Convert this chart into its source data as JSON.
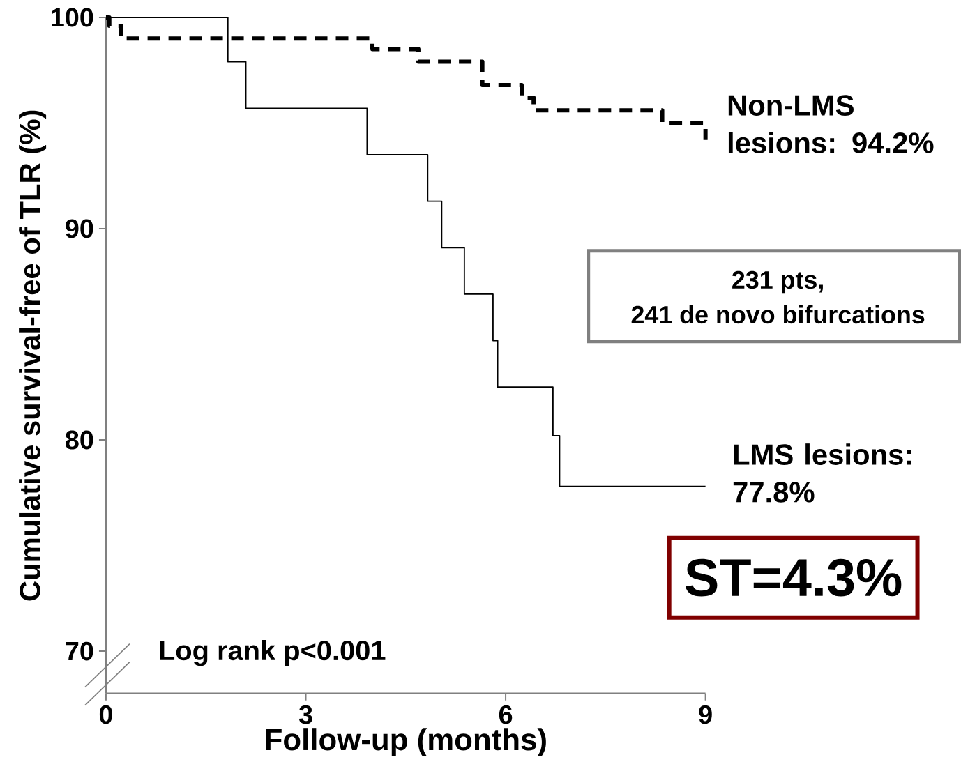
{
  "chart_data": {
    "type": "step",
    "xlabel": "Follow-up (months)",
    "ylabel": "Cumulative survival-free of TLR (%)",
    "xlim": [
      0,
      9
    ],
    "xticks": [
      0,
      3,
      6,
      9
    ],
    "ylim": [
      68,
      100
    ],
    "yticks": [
      70,
      80,
      90,
      100
    ],
    "grid": false,
    "series": [
      {
        "name": "LMS lesions: 77.8%",
        "color": "#000000",
        "line_style": "solid",
        "x": [
          0,
          1.83,
          2.1,
          3.92,
          4.83,
          5.04,
          5.38,
          5.81,
          5.88,
          6.71,
          6.81,
          9
        ],
        "values": [
          100,
          97.9,
          95.7,
          93.5,
          91.3,
          89.1,
          86.9,
          84.7,
          82.5,
          80.2,
          77.8,
          77.8
        ]
      },
      {
        "name": "Non-LMS lesions: 94.2%",
        "color": "#000000",
        "line_style": "dashed",
        "x": [
          0,
          0.05,
          0.23,
          4.0,
          4.69,
          5.65,
          6.24,
          6.42,
          8.35,
          9
        ],
        "values": [
          100,
          99.6,
          99.0,
          98.5,
          97.9,
          96.8,
          96.2,
          95.6,
          95.0,
          94.2
        ]
      }
    ],
    "annotations": [
      "231 pts,",
      "241 de novo bifurcations",
      "ST=4.3%",
      "Log rank p<0.001"
    ]
  }
}
